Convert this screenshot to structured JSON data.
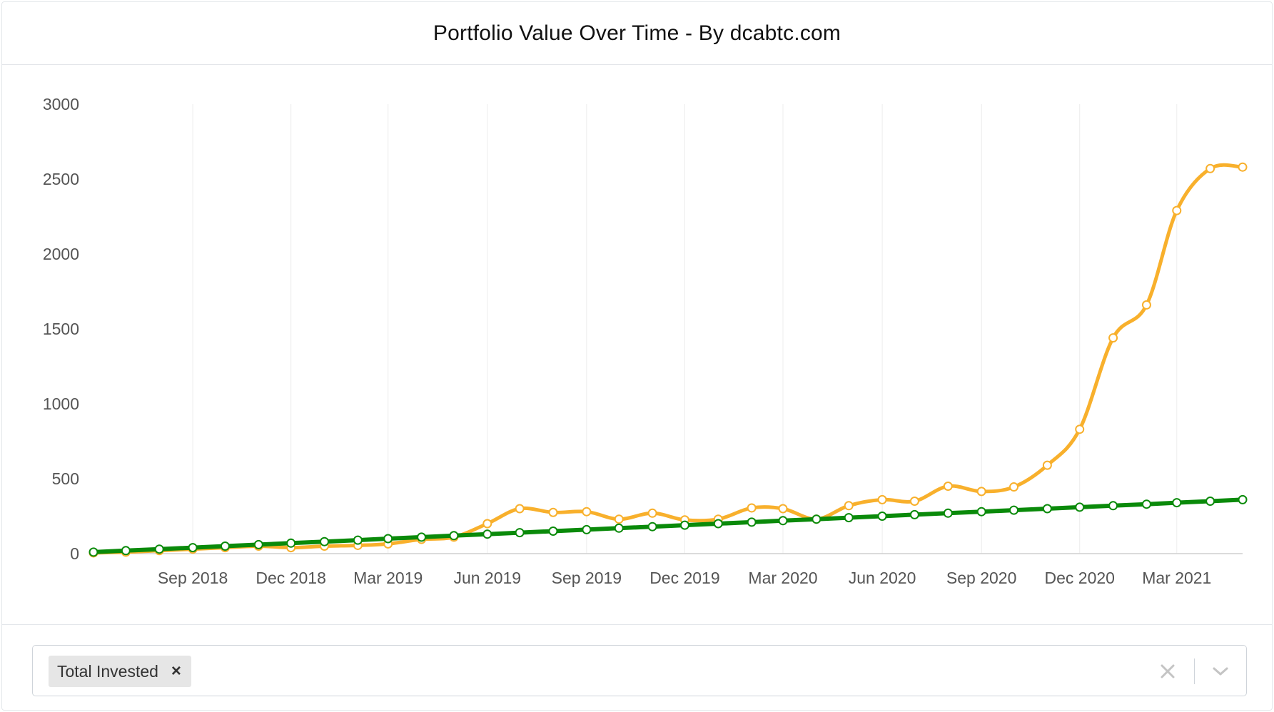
{
  "card": {
    "title": "Portfolio Value Over Time - By dcabtc.com"
  },
  "filter": {
    "selected_chip_label": "Total Invested",
    "chip_remove_glyph": "×"
  },
  "icons": {
    "chip_remove": "close-icon",
    "clear": "clear-icon",
    "dropdown": "chevron-down-icon"
  },
  "chart_data": {
    "type": "line",
    "title": "",
    "xlabel": "",
    "ylabel": "",
    "ylim": [
      0,
      3000
    ],
    "yticks": [
      0,
      500,
      1000,
      1500,
      2000,
      2500,
      3000
    ],
    "xticks": [
      "Sep 2018",
      "Dec 2018",
      "Mar 2019",
      "Jun 2019",
      "Sep 2019",
      "Dec 2019",
      "Mar 2020",
      "Jun 2020",
      "Sep 2020",
      "Dec 2020",
      "Mar 2021"
    ],
    "x": [
      "2018-06-01",
      "2018-07-01",
      "2018-08-01",
      "2018-09-01",
      "2018-10-01",
      "2018-11-01",
      "2018-12-01",
      "2019-01-01",
      "2019-02-01",
      "2019-03-01",
      "2019-04-01",
      "2019-05-01",
      "2019-06-01",
      "2019-07-01",
      "2019-08-01",
      "2019-09-01",
      "2019-10-01",
      "2019-11-01",
      "2019-12-01",
      "2020-01-01",
      "2020-02-01",
      "2020-03-01",
      "2020-04-01",
      "2020-05-01",
      "2020-06-01",
      "2020-07-01",
      "2020-08-01",
      "2020-09-01",
      "2020-10-01",
      "2020-11-01",
      "2020-12-01",
      "2021-01-01",
      "2021-02-01",
      "2021-03-01",
      "2021-04-01",
      "2021-05-01"
    ],
    "grid": true,
    "legend": "none",
    "series": [
      {
        "color": "#f8b02c",
        "values": [
          5,
          10,
          20,
          30,
          40,
          50,
          40,
          50,
          55,
          65,
          95,
          110,
          200,
          300,
          275,
          280,
          230,
          270,
          225,
          230,
          305,
          300,
          230,
          320,
          360,
          350,
          450,
          415,
          445,
          590,
          830,
          1440,
          1660,
          2290,
          2570,
          2580
        ]
      },
      {
        "color": "#0a8a0a",
        "values": [
          10,
          20,
          30,
          40,
          50,
          60,
          70,
          80,
          90,
          100,
          110,
          120,
          130,
          140,
          150,
          160,
          170,
          180,
          190,
          200,
          210,
          220,
          230,
          240,
          250,
          260,
          270,
          280,
          290,
          300,
          310,
          320,
          330,
          340,
          350,
          360
        ]
      }
    ]
  }
}
